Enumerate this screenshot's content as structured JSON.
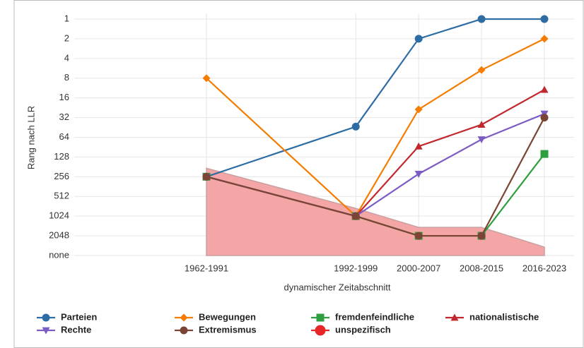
{
  "chart_data": {
    "type": "line",
    "y_axis_label": "Rang nach LLR",
    "x_axis_label": "dynamischer Zeitabschnitt",
    "categories": [
      "1962-1991",
      "1992-1999",
      "2000-2007",
      "2008-2015",
      "2016-2023"
    ],
    "log_scale_y": true,
    "y_reversed": true,
    "ylim": [
      1,
      4096
    ],
    "yticks": [
      1,
      2,
      4,
      8,
      16,
      32,
      64,
      128,
      256,
      512,
      1024,
      2048,
      {
        "value": 4096,
        "label": "none"
      }
    ],
    "grid": true,
    "legend": "bottom",
    "series": [
      {
        "name": "Parteien",
        "color": "#2e6da4",
        "marker": "circle",
        "values": [
          256,
          44,
          2,
          1,
          1
        ]
      },
      {
        "name": "Bewegungen",
        "color": "#f57c00",
        "marker": "diamond",
        "values": [
          8,
          1024,
          24,
          6,
          2
        ]
      },
      {
        "name": "fremdenfeindliche",
        "color": "#2e9e3e",
        "marker": "square",
        "values": [
          256,
          1024,
          2048,
          2048,
          115
        ]
      },
      {
        "name": "nationalistische",
        "color": "#c0282d",
        "marker": "triangle",
        "values": [
          256,
          1024,
          88,
          41,
          12
        ]
      },
      {
        "name": "Rechte",
        "color": "#7b5cc4",
        "marker": "triangle-down",
        "values": [
          256,
          1024,
          232,
          69,
          28
        ]
      },
      {
        "name": "Extremismus",
        "color": "#7a4535",
        "marker": "circle",
        "values": [
          256,
          1024,
          2048,
          2048,
          32
        ]
      },
      {
        "name": "unspezifisch",
        "color": "#e52727",
        "marker": "circle",
        "area": true,
        "fill": "#f4a5a5",
        "values": [
          190,
          780,
          1520,
          1520,
          3040
        ]
      }
    ]
  }
}
